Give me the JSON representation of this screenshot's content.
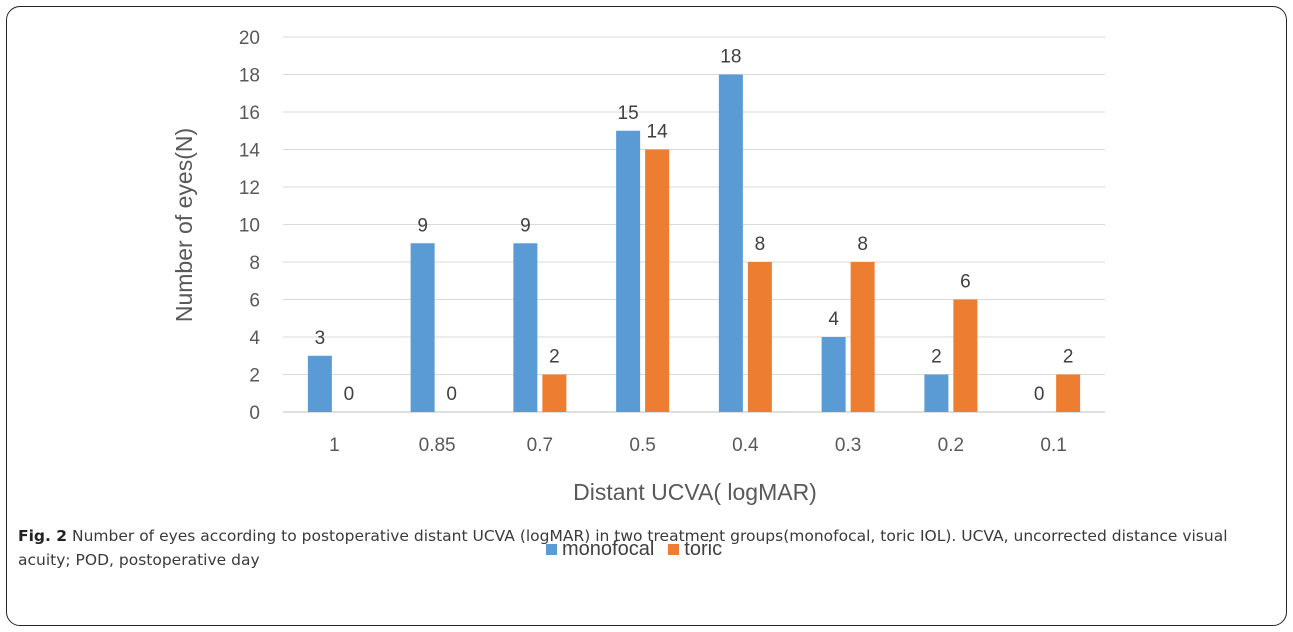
{
  "chart_data": {
    "type": "bar",
    "categories": [
      "1",
      "0.85",
      "0.7",
      "0.5",
      "0.4",
      "0.3",
      "0.2",
      "0.1"
    ],
    "series": [
      {
        "name": "monofocal",
        "values": [
          3,
          9,
          9,
          15,
          18,
          4,
          2,
          0
        ],
        "color": "#5b9bd5"
      },
      {
        "name": "toric",
        "values": [
          0,
          0,
          2,
          14,
          8,
          8,
          6,
          2
        ],
        "color": "#ed7d31"
      }
    ],
    "xlabel": "Distant UCVA( logMAR)",
    "ylabel": "Number of eyes(N)",
    "ylim": [
      0,
      20
    ],
    "yticks": [
      0,
      2,
      4,
      6,
      8,
      10,
      12,
      14,
      16,
      18,
      20
    ],
    "grid": true,
    "legend": "bottom-center",
    "data_labels": true
  },
  "caption": {
    "label": "Fig. 2",
    "text": " Number of eyes according to postoperative distant UCVA (logMAR) in two treatment groups(monofocal, toric IOL). UCVA, uncorrected distance visual acuity; POD, postoperative day"
  }
}
